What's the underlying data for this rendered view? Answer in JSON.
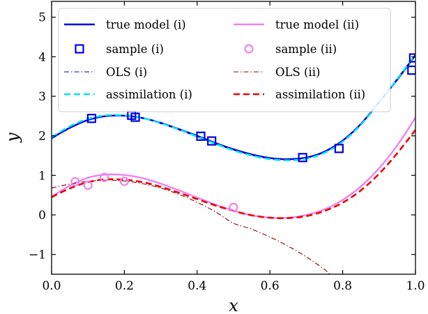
{
  "chart_data": {
    "type": "line",
    "xlabel": "x",
    "ylabel": "y",
    "xlim": [
      0.0,
      1.0
    ],
    "ylim": [
      -1.5,
      5.4
    ],
    "x_ticks": [
      0.0,
      0.2,
      0.4,
      0.6,
      0.8,
      1.0
    ],
    "y_ticks": [
      -1,
      0,
      1,
      2,
      3,
      4,
      5
    ],
    "x_tick_labels": [
      "0.0",
      "0.2",
      "0.4",
      "0.6",
      "0.8",
      "1.0"
    ],
    "y_tick_labels": [
      "−1",
      "0",
      "1",
      "2",
      "3",
      "4",
      "5"
    ],
    "grid": false,
    "legend_position": "top",
    "series": [
      {
        "name": "true model (i)",
        "kind": "line",
        "color": "#0000e0",
        "dash": "solid",
        "x": [
          0.0,
          0.05,
          0.1,
          0.15,
          0.2,
          0.25,
          0.3,
          0.35,
          0.4,
          0.45,
          0.5,
          0.55,
          0.6,
          0.65,
          0.7,
          0.75,
          0.8,
          0.85,
          0.9,
          0.95,
          1.0
        ],
        "y": [
          1.94,
          2.2,
          2.4,
          2.5,
          2.51,
          2.45,
          2.33,
          2.17,
          2.0,
          1.82,
          1.66,
          1.53,
          1.44,
          1.41,
          1.45,
          1.6,
          1.88,
          2.3,
          2.85,
          3.42,
          4.04
        ]
      },
      {
        "name": "sample (i)",
        "kind": "scatter",
        "marker": "square",
        "color": "#0000e0",
        "x": [
          0.11,
          0.22,
          0.23,
          0.41,
          0.44,
          0.69,
          0.79,
          0.99,
          0.995
        ],
        "y": [
          2.44,
          2.52,
          2.47,
          1.99,
          1.87,
          1.45,
          1.68,
          3.66,
          3.97
        ]
      },
      {
        "name": "OLS (i)",
        "kind": "line",
        "color": "#000080",
        "dash": "dashdot",
        "x": [
          0.0,
          0.05,
          0.1,
          0.15,
          0.2,
          0.25,
          0.3,
          0.35,
          0.4,
          0.45,
          0.5,
          0.55,
          0.6,
          0.65,
          0.7,
          0.75,
          0.8,
          0.85,
          0.9,
          0.95,
          1.0
        ],
        "y": [
          1.96,
          2.22,
          2.41,
          2.5,
          2.51,
          2.44,
          2.31,
          2.15,
          1.98,
          1.8,
          1.64,
          1.51,
          1.42,
          1.39,
          1.43,
          1.58,
          1.86,
          2.29,
          2.85,
          3.45,
          4.06
        ]
      },
      {
        "name": "assimilation (i)",
        "kind": "line",
        "color": "#00e5f5",
        "dash": "dashed",
        "x": [
          0.0,
          0.05,
          0.1,
          0.15,
          0.2,
          0.25,
          0.3,
          0.35,
          0.4,
          0.45,
          0.5,
          0.55,
          0.6,
          0.65,
          0.7,
          0.75,
          0.8,
          0.85,
          0.9,
          0.95,
          1.0
        ],
        "y": [
          1.97,
          2.24,
          2.43,
          2.52,
          2.52,
          2.45,
          2.32,
          2.16,
          1.98,
          1.8,
          1.63,
          1.5,
          1.41,
          1.38,
          1.42,
          1.57,
          1.85,
          2.28,
          2.84,
          3.44,
          4.06
        ]
      },
      {
        "name": "true model (ii)",
        "kind": "line",
        "color": "#ee82ee",
        "dash": "solid",
        "x": [
          0.0,
          0.05,
          0.1,
          0.15,
          0.2,
          0.25,
          0.3,
          0.35,
          0.4,
          0.45,
          0.5,
          0.55,
          0.6,
          0.65,
          0.7,
          0.75,
          0.8,
          0.85,
          0.9,
          0.95,
          1.0
        ],
        "y": [
          0.46,
          0.74,
          0.94,
          1.02,
          1.01,
          0.93,
          0.79,
          0.62,
          0.44,
          0.26,
          0.11,
          -0.01,
          -0.07,
          -0.07,
          0.0,
          0.14,
          0.38,
          0.72,
          1.18,
          1.76,
          2.46
        ]
      },
      {
        "name": "sample (ii)",
        "kind": "scatter",
        "marker": "circle",
        "color": "#ee82ee",
        "x": [
          0.065,
          0.1,
          0.145,
          0.2,
          0.5
        ],
        "y": [
          0.84,
          0.75,
          0.95,
          0.85,
          0.19
        ]
      },
      {
        "name": "OLS (ii)",
        "kind": "line",
        "color": "#8b0000",
        "dash": "dashdot",
        "x": [
          0.0,
          0.05,
          0.1,
          0.15,
          0.2,
          0.25,
          0.3,
          0.35,
          0.4,
          0.45,
          0.5,
          0.55,
          0.6,
          0.65,
          0.7,
          0.75,
          0.77
        ],
        "y": [
          0.68,
          0.78,
          0.85,
          0.88,
          0.86,
          0.79,
          0.68,
          0.52,
          0.32,
          0.08,
          -0.21,
          -0.36,
          -0.56,
          -0.79,
          -1.06,
          -1.38,
          -1.55
        ]
      },
      {
        "name": "assimilation (ii)",
        "kind": "line",
        "color": "#ee0000",
        "dash": "dashed",
        "x": [
          0.0,
          0.05,
          0.1,
          0.15,
          0.2,
          0.25,
          0.3,
          0.35,
          0.4,
          0.45,
          0.5,
          0.55,
          0.6,
          0.65,
          0.7,
          0.75,
          0.8,
          0.85,
          0.9,
          0.95,
          1.0
        ],
        "y": [
          0.45,
          0.67,
          0.83,
          0.9,
          0.89,
          0.83,
          0.71,
          0.56,
          0.4,
          0.24,
          0.1,
          -0.01,
          -0.07,
          -0.08,
          -0.03,
          0.1,
          0.31,
          0.62,
          1.04,
          1.56,
          2.15
        ]
      }
    ]
  }
}
